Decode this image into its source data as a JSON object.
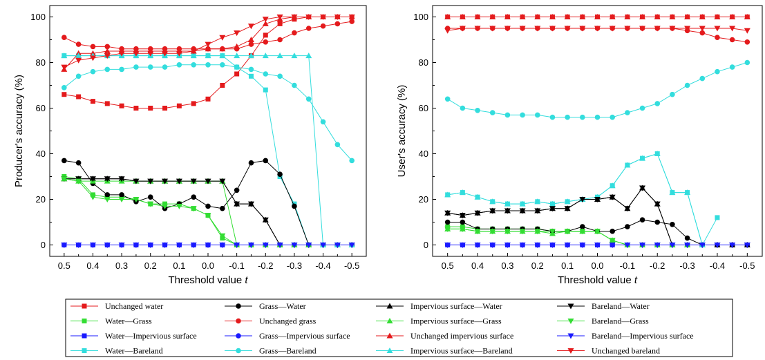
{
  "chart_data": [
    {
      "type": "line",
      "xlabel_text": "Threshold value ",
      "xlabel_var": "t",
      "ylabel": "Producer's accuracy (%)",
      "xlim": [
        0.55,
        -0.55
      ],
      "ylim": [
        -5,
        105
      ],
      "xticks": [
        "0.5",
        "0.4",
        "0.3",
        "0.2",
        "0.1",
        "0.0",
        "-0.1",
        "-0.2",
        "-0.3",
        "-0.4",
        "-0.5"
      ],
      "yticks": [
        "0",
        "20",
        "40",
        "60",
        "80",
        "100"
      ],
      "x": [
        0.5,
        0.45,
        0.4,
        0.35,
        0.3,
        0.25,
        0.2,
        0.15,
        0.1,
        0.05,
        0.0,
        -0.05,
        -0.1,
        -0.15,
        -0.2,
        -0.25,
        -0.3,
        -0.35,
        -0.4,
        -0.45,
        -0.5
      ],
      "series": [
        {
          "key": "uw",
          "values": [
            66,
            65,
            63,
            62,
            61,
            60,
            60,
            60,
            61,
            62,
            64,
            70,
            75,
            83,
            92,
            97,
            99,
            100,
            100,
            100,
            100
          ]
        },
        {
          "key": "wg",
          "values": [
            30,
            29,
            22,
            21,
            21,
            20,
            18,
            18,
            18,
            16,
            13,
            3,
            0,
            0,
            0,
            0,
            0,
            0,
            0,
            0,
            0
          ]
        },
        {
          "key": "wi",
          "values": [
            0,
            0,
            0,
            0,
            0,
            0,
            0,
            0,
            0,
            0,
            0,
            0,
            0,
            0,
            0,
            0,
            0,
            0,
            0,
            0,
            0
          ]
        },
        {
          "key": "wb",
          "values": [
            83,
            83,
            83,
            83,
            83,
            83,
            83,
            83,
            83,
            83,
            83,
            83,
            78,
            74,
            68,
            30,
            18,
            0,
            0,
            0,
            0
          ]
        },
        {
          "key": "gw",
          "values": [
            37,
            36,
            27,
            22,
            22,
            19,
            21,
            16,
            18,
            21,
            17,
            16,
            24,
            36,
            37,
            31,
            17,
            0,
            0,
            0,
            0
          ]
        },
        {
          "key": "ug",
          "values": [
            91,
            88,
            87,
            87,
            86,
            86,
            86,
            86,
            86,
            86,
            86,
            86,
            86,
            88,
            89,
            90,
            93,
            95,
            96,
            97,
            98
          ]
        },
        {
          "key": "gi",
          "values": [
            0,
            0,
            0,
            0,
            0,
            0,
            0,
            0,
            0,
            0,
            0,
            0,
            0,
            0,
            0,
            0,
            0,
            0,
            0,
            0,
            0
          ]
        },
        {
          "key": "gb",
          "values": [
            69,
            74,
            76,
            77,
            77,
            78,
            78,
            78,
            79,
            79,
            79,
            79,
            78,
            77,
            75,
            74,
            70,
            64,
            54,
            44,
            37
          ]
        },
        {
          "key": "iw",
          "values": [
            29,
            29,
            29,
            29,
            29,
            28,
            28,
            28,
            28,
            28,
            28,
            28,
            18,
            18,
            11,
            0,
            0,
            0,
            0,
            0,
            0
          ]
        },
        {
          "key": "ig",
          "values": [
            29,
            28,
            28,
            28,
            28,
            28,
            28,
            28,
            28,
            28,
            28,
            28,
            0,
            0,
            0,
            0,
            0,
            0,
            0,
            0,
            0
          ]
        },
        {
          "key": "ui",
          "values": [
            77,
            84,
            84,
            85,
            85,
            85,
            85,
            85,
            85,
            85,
            86,
            86,
            87,
            90,
            97,
            99,
            100,
            100,
            100,
            100,
            100
          ]
        },
        {
          "key": "ib",
          "values": [
            83,
            83,
            83,
            83,
            83,
            83,
            83,
            83,
            83,
            83,
            83,
            83,
            83,
            83,
            83,
            83,
            83,
            83,
            0,
            0,
            0
          ]
        },
        {
          "key": "bw",
          "values": [
            29,
            29,
            29,
            29,
            29,
            28,
            28,
            28,
            28,
            28,
            28,
            28,
            18,
            18,
            11,
            0,
            0,
            0,
            0,
            0,
            0
          ]
        },
        {
          "key": "bg",
          "values": [
            29,
            28,
            21,
            20,
            20,
            20,
            18,
            17,
            17,
            16,
            13,
            4,
            0,
            0,
            0,
            0,
            0,
            0,
            0,
            0,
            0
          ]
        },
        {
          "key": "bi",
          "values": [
            0,
            0,
            0,
            0,
            0,
            0,
            0,
            0,
            0,
            0,
            0,
            0,
            0,
            0,
            0,
            0,
            0,
            0,
            0,
            0,
            0
          ]
        },
        {
          "key": "ub",
          "values": [
            78,
            81,
            82,
            83,
            84,
            84,
            84,
            84,
            84,
            85,
            88,
            91,
            93,
            96,
            99,
            100,
            100,
            100,
            100,
            100,
            100
          ]
        }
      ]
    },
    {
      "type": "line",
      "xlabel_text": "Threshold value ",
      "xlabel_var": "t",
      "ylabel": "User's accuracy (%)",
      "xlim": [
        0.55,
        -0.55
      ],
      "ylim": [
        -5,
        105
      ],
      "xticks": [
        "0.5",
        "0.4",
        "0.3",
        "0.2",
        "0.1",
        "0.0",
        "-0.1",
        "-0.2",
        "-0.3",
        "-0.4",
        "-0.5"
      ],
      "yticks": [
        "0",
        "20",
        "40",
        "60",
        "80",
        "100"
      ],
      "x": [
        0.5,
        0.45,
        0.4,
        0.35,
        0.3,
        0.25,
        0.2,
        0.15,
        0.1,
        0.05,
        0.0,
        -0.05,
        -0.1,
        -0.15,
        -0.2,
        -0.25,
        -0.3,
        -0.35,
        -0.4,
        -0.45,
        -0.5
      ],
      "series": [
        {
          "key": "uw",
          "values": [
            100,
            100,
            100,
            100,
            100,
            100,
            100,
            100,
            100,
            100,
            100,
            100,
            100,
            100,
            100,
            100,
            100,
            100,
            100,
            100,
            100
          ]
        },
        {
          "key": "wg",
          "values": [
            8,
            8,
            7,
            7,
            7,
            7,
            7,
            6,
            6,
            6,
            6,
            2,
            0,
            0,
            0,
            0,
            0,
            0,
            null,
            null,
            null
          ]
        },
        {
          "key": "wi",
          "values": [
            0,
            0,
            0,
            0,
            0,
            0,
            0,
            0,
            0,
            0,
            0,
            0,
            0,
            0,
            0,
            0,
            0,
            0,
            0,
            0,
            0
          ]
        },
        {
          "key": "wb",
          "values": [
            22,
            23,
            21,
            19,
            18,
            18,
            19,
            18,
            19,
            20,
            21,
            26,
            35,
            38,
            40,
            23,
            23,
            0,
            12,
            null,
            null
          ]
        },
        {
          "key": "gw",
          "values": [
            10,
            10,
            7,
            7,
            7,
            7,
            7,
            6,
            6,
            8,
            6,
            6,
            8,
            11,
            10,
            9,
            3,
            0,
            0,
            0,
            0
          ]
        },
        {
          "key": "ug",
          "values": [
            95,
            95,
            95,
            95,
            95,
            95,
            95,
            95,
            95,
            95,
            95,
            95,
            95,
            95,
            95,
            95,
            94,
            93,
            91,
            90,
            89
          ]
        },
        {
          "key": "gi",
          "values": [
            0,
            0,
            0,
            0,
            0,
            0,
            0,
            0,
            0,
            0,
            0,
            0,
            0,
            0,
            0,
            0,
            0,
            0,
            0,
            0,
            0
          ]
        },
        {
          "key": "gb",
          "values": [
            64,
            60,
            59,
            58,
            57,
            57,
            57,
            56,
            56,
            56,
            56,
            56,
            58,
            60,
            62,
            66,
            70,
            73,
            76,
            78,
            80
          ]
        },
        {
          "key": "iw",
          "values": [
            14,
            13,
            14,
            15,
            15,
            15,
            15,
            16,
            16,
            20,
            20,
            21,
            16,
            25,
            18,
            0,
            0,
            0,
            0,
            0,
            0
          ]
        },
        {
          "key": "ig",
          "values": [
            7,
            7,
            6,
            6,
            6,
            6,
            6,
            5,
            6,
            6,
            6,
            2,
            0,
            0,
            0,
            0,
            0,
            0,
            null,
            null,
            null
          ]
        },
        {
          "key": "ui",
          "values": [
            100,
            100,
            100,
            100,
            100,
            100,
            100,
            100,
            100,
            100,
            100,
            100,
            100,
            100,
            100,
            100,
            100,
            100,
            100,
            100,
            100
          ]
        },
        {
          "key": "ib",
          "values": [
            22,
            23,
            21,
            19,
            18,
            18,
            19,
            18,
            19,
            20,
            21,
            26,
            35,
            38,
            40,
            23,
            23,
            0,
            null,
            null,
            null
          ]
        },
        {
          "key": "bw",
          "values": [
            14,
            13,
            14,
            15,
            15,
            15,
            15,
            16,
            16,
            20,
            20,
            21,
            16,
            25,
            18,
            0,
            0,
            0,
            0,
            0,
            0
          ]
        },
        {
          "key": "bg",
          "values": [
            7,
            7,
            6,
            6,
            6,
            6,
            6,
            6,
            6,
            6,
            6,
            2,
            0,
            0,
            0,
            0,
            0,
            0,
            null,
            null,
            null
          ]
        },
        {
          "key": "bi",
          "values": [
            0,
            0,
            0,
            0,
            0,
            0,
            0,
            0,
            0,
            0,
            0,
            0,
            0,
            0,
            0,
            0,
            0,
            0,
            0,
            0,
            0
          ]
        },
        {
          "key": "ub",
          "values": [
            94,
            95,
            95,
            95,
            95,
            95,
            95,
            95,
            95,
            95,
            95,
            95,
            95,
            95,
            95,
            95,
            95,
            95,
            95,
            95,
            94
          ]
        }
      ]
    }
  ],
  "legend": {
    "items": [
      {
        "key": "uw",
        "label": "Unchanged water",
        "color": "#e41a1c",
        "marker": "square"
      },
      {
        "key": "gw",
        "label": "Grass—Water",
        "color": "#000000",
        "marker": "circle"
      },
      {
        "key": "iw",
        "label": "Impervious surface—Water",
        "color": "#000000",
        "marker": "triangle-up"
      },
      {
        "key": "bw",
        "label": "Bareland—Water",
        "color": "#000000",
        "marker": "triangle-down"
      },
      {
        "key": "wg",
        "label": "Water—Grass",
        "color": "#33dd33",
        "marker": "square"
      },
      {
        "key": "ug",
        "label": "Unchanged grass",
        "color": "#e41a1c",
        "marker": "circle"
      },
      {
        "key": "ig",
        "label": "Impervious surface—Grass",
        "color": "#33dd33",
        "marker": "triangle-up"
      },
      {
        "key": "bg",
        "label": "Bareland—Grass",
        "color": "#33dd33",
        "marker": "triangle-down"
      },
      {
        "key": "wi",
        "label": "Water—Impervious surface",
        "color": "#1a1aff",
        "marker": "square"
      },
      {
        "key": "gi",
        "label": "Grass—Impervious surface",
        "color": "#1a1aff",
        "marker": "circle"
      },
      {
        "key": "ui",
        "label": "Unchanged impervious surface",
        "color": "#e41a1c",
        "marker": "triangle-up"
      },
      {
        "key": "bi",
        "label": "Bareland—Impervious surface",
        "color": "#1a1aff",
        "marker": "triangle-down"
      },
      {
        "key": "wb",
        "label": "Water—Bareland",
        "color": "#33dddd",
        "marker": "square"
      },
      {
        "key": "gb",
        "label": "Grass—Bareland",
        "color": "#33dddd",
        "marker": "circle"
      },
      {
        "key": "ib",
        "label": "Impervious surface—Bareland",
        "color": "#33dddd",
        "marker": "triangle-up"
      },
      {
        "key": "ub",
        "label": "Unchanged bareland",
        "color": "#e41a1c",
        "marker": "triangle-down"
      }
    ]
  }
}
